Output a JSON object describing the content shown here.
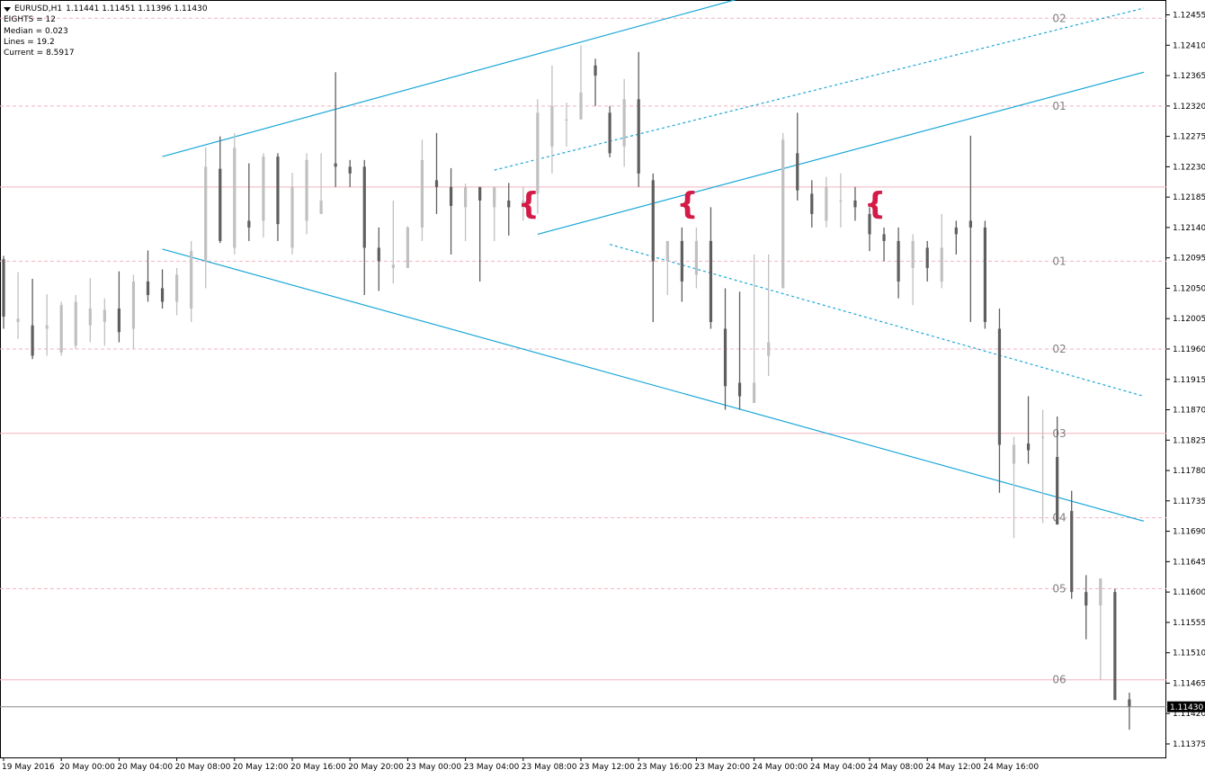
{
  "header": {
    "symbol": "EURUSD,H1",
    "ohlc": "1.11441 1.11451 1.11396 1.11430",
    "lines": [
      "EIGHTS = 12",
      "Median = 0.023",
      "Lines = 19.2",
      "Current = 8.5917"
    ]
  },
  "colors": {
    "background": "#ffffff",
    "bull_bar": "#c0c0c0",
    "bear_bar": "#5f5f5f",
    "channel": "#1aa7d8",
    "eighths_line": "#f2b3bf",
    "brace": "#d41a46",
    "price_line": "#8c8c8c",
    "axis_text": "#000000",
    "level_label": "#808080"
  },
  "chart_data": {
    "type": "bar",
    "symbol": "EURUSD",
    "timeframe": "H1",
    "ylim": [
      1.11355,
      1.12477
    ],
    "y_ticks": [
      "1.12455",
      "1.12410",
      "1.12365",
      "1.12320",
      "1.12275",
      "1.12230",
      "1.12185",
      "1.12140",
      "1.12095",
      "1.12050",
      "1.12005",
      "1.11960",
      "1.11915",
      "1.11870",
      "1.11825",
      "1.11780",
      "1.11735",
      "1.11690",
      "1.11645",
      "1.11600",
      "1.11555",
      "1.11510",
      "1.11465",
      "1.11420",
      "1.11375"
    ],
    "x_labels": [
      "19 May 2016",
      "20 May 00:00",
      "20 May 04:00",
      "20 May 08:00",
      "20 May 12:00",
      "20 May 16:00",
      "20 May 20:00",
      "23 May 00:00",
      "23 May 04:00",
      "23 May 08:00",
      "23 May 12:00",
      "23 May 16:00",
      "23 May 20:00",
      "24 May 00:00",
      "24 May 04:00",
      "24 May 08:00",
      "24 May 12:00",
      "24 May 16:00"
    ],
    "current_price": "1.11430",
    "current_price_value": 1.1143,
    "bars": [
      [
        1.12093,
        1.12098,
        1.1199,
        1.12008
      ],
      [
        1.12,
        1.12074,
        1.11975,
        1.12005
      ],
      [
        1.11995,
        1.12064,
        1.11945,
        1.1195
      ],
      [
        1.1199,
        1.12041,
        1.1195,
        1.11995
      ],
      [
        1.11955,
        1.1203,
        1.1195,
        1.12025
      ],
      [
        1.11965,
        1.1204,
        1.1196,
        1.1203
      ],
      [
        1.11995,
        1.12065,
        1.1197,
        1.1202
      ],
      [
        1.12,
        1.12035,
        1.11965,
        1.12018
      ],
      [
        1.1202,
        1.12075,
        1.1197,
        1.11985
      ],
      [
        1.1199,
        1.1207,
        1.1196,
        1.1206
      ],
      [
        1.1206,
        1.12106,
        1.1203,
        1.1204
      ],
      [
        1.1205,
        1.12078,
        1.1202,
        1.1203
      ],
      [
        1.1203,
        1.1208,
        1.1201,
        1.1207
      ],
      [
        1.1202,
        1.1212,
        1.12,
        1.12105
      ],
      [
        1.1209,
        1.12259,
        1.1205,
        1.1223
      ],
      [
        1.12227,
        1.12275,
        1.12117,
        1.1212
      ],
      [
        1.1211,
        1.1228,
        1.121,
        1.12258
      ],
      [
        1.1215,
        1.12235,
        1.1212,
        1.1214
      ],
      [
        1.1215,
        1.1225,
        1.12125,
        1.12245
      ],
      [
        1.12245,
        1.1225,
        1.1212,
        1.12145
      ],
      [
        1.1211,
        1.12221,
        1.121,
        1.122
      ],
      [
        1.1215,
        1.1225,
        1.1213,
        1.1224
      ],
      [
        1.1216,
        1.1225,
        1.1218,
        1.1218
      ],
      [
        1.12235,
        1.1237,
        1.122,
        1.1223
      ],
      [
        1.1223,
        1.1224,
        1.122,
        1.1222
      ],
      [
        1.1223,
        1.1224,
        1.1204,
        1.1211
      ],
      [
        1.1211,
        1.1214,
        1.12046,
        1.1209
      ],
      [
        1.1208,
        1.1218,
        1.12057,
        1.12085
      ],
      [
        1.1208,
        1.12142,
        1.1209,
        1.1214
      ],
      [
        1.1214,
        1.1227,
        1.1212,
        1.1224
      ],
      [
        1.1221,
        1.1228,
        1.1216,
        1.122
      ],
      [
        1.122,
        1.12228,
        1.121,
        1.12172
      ],
      [
        1.1217,
        1.12205,
        1.1212,
        1.122
      ],
      [
        1.122,
        1.122,
        1.1206,
        1.1218
      ],
      [
        1.1217,
        1.122,
        1.1212,
        1.122
      ],
      [
        1.1218,
        1.12206,
        1.12128,
        1.1217
      ],
      [
        1.1217,
        1.122,
        1.1215,
        1.1218
      ],
      [
        1.1219,
        1.1233,
        1.1216,
        1.1231
      ],
      [
        1.1226,
        1.1238,
        1.1222,
        1.1232
      ],
      [
        1.123,
        1.12325,
        1.1226,
        1.123
      ],
      [
        1.123,
        1.1241,
        1.1234,
        1.1234
      ],
      [
        1.1238,
        1.1239,
        1.1232,
        1.12365
      ],
      [
        1.1231,
        1.1232,
        1.12244,
        1.1225
      ],
      [
        1.1226,
        1.1236,
        1.1223,
        1.1233
      ],
      [
        1.1233,
        1.124,
        1.122,
        1.1222
      ],
      [
        1.1221,
        1.1222,
        1.12,
        1.1209
      ],
      [
        1.1209,
        1.1212,
        1.1204,
        1.1212
      ],
      [
        1.1212,
        1.1214,
        1.1203,
        1.1206
      ],
      [
        1.1207,
        1.1214,
        1.1205,
        1.1212
      ],
      [
        1.1212,
        1.1217,
        1.1199,
        1.12
      ],
      [
        1.1199,
        1.1205,
        1.1187,
        1.11905
      ],
      [
        1.1191,
        1.12045,
        1.1187,
        1.1189
      ],
      [
        1.1188,
        1.121,
        1.1189,
        1.1191
      ],
      [
        1.1195,
        1.121,
        1.1192,
        1.1197
      ],
      [
        1.1205,
        1.1228,
        1.1207,
        1.1227
      ],
      [
        1.1225,
        1.1231,
        1.1218,
        1.12195
      ],
      [
        1.1219,
        1.1221,
        1.1214,
        1.1216
      ],
      [
        1.1215,
        1.12215,
        1.1214,
        1.122
      ],
      [
        1.1218,
        1.1222,
        1.1214,
        1.1218
      ],
      [
        1.1218,
        1.122,
        1.1215,
        1.1217
      ],
      [
        1.1216,
        1.1217,
        1.12105,
        1.1213
      ],
      [
        1.1213,
        1.1214,
        1.1209,
        1.1212
      ],
      [
        1.1212,
        1.1214,
        1.12035,
        1.1206
      ],
      [
        1.1208,
        1.1213,
        1.12025,
        1.1212
      ],
      [
        1.1211,
        1.1212,
        1.1206,
        1.1208
      ],
      [
        1.1206,
        1.1216,
        1.1205,
        1.1211
      ],
      [
        1.1214,
        1.1215,
        1.121,
        1.1213
      ],
      [
        1.1215,
        1.12276,
        1.12,
        1.1214
      ],
      [
        1.1214,
        1.1215,
        1.1199,
        1.12
      ],
      [
        1.1199,
        1.1202,
        1.11747,
        1.11818
      ],
      [
        1.1179,
        1.1183,
        1.1168,
        1.11818
      ],
      [
        1.1182,
        1.1189,
        1.1179,
        1.1181
      ],
      [
        1.1183,
        1.1187,
        1.11702,
        1.1183
      ],
      [
        1.118,
        1.1186,
        1.117,
        1.117
      ],
      [
        1.1172,
        1.1175,
        1.1159,
        1.116
      ],
      [
        1.116,
        1.11625,
        1.1153,
        1.1158
      ],
      [
        1.1158,
        1.1162,
        1.1147,
        1.1162
      ],
      [
        1.116,
        1.11605,
        1.1144,
        1.1144
      ],
      [
        1.11441,
        1.11451,
        1.11396,
        1.1143
      ]
    ],
    "eighths_levels": [
      {
        "price": 1.1245,
        "label": "02",
        "style": "dashed"
      },
      {
        "price": 1.1232,
        "label": "01",
        "style": "dashed"
      },
      {
        "price": 1.122,
        "label": "",
        "style": "solid"
      },
      {
        "price": 1.1209,
        "label": "01",
        "style": "dashed"
      },
      {
        "price": 1.1196,
        "label": "02",
        "style": "dashed"
      },
      {
        "price": 1.11835,
        "label": "03",
        "style": "solid"
      },
      {
        "price": 1.1171,
        "label": "04",
        "style": "dashed"
      },
      {
        "price": 1.11605,
        "label": "05",
        "style": "dashed"
      },
      {
        "price": 1.1147,
        "label": "06",
        "style": "solid"
      }
    ],
    "brace_positions": [
      36,
      47,
      60
    ],
    "brace_glyph": "{",
    "trend_lines": [
      {
        "style": "solid",
        "from": [
          11,
          1.12245
        ],
        "to": [
          52,
          1.12485
        ]
      },
      {
        "style": "solid",
        "from": [
          11,
          1.12108
        ],
        "to": [
          79,
          1.11705
        ]
      },
      {
        "style": "dashed",
        "from": [
          34,
          1.12225
        ],
        "to": [
          79,
          1.12465
        ]
      },
      {
        "style": "solid",
        "from": [
          37,
          1.1213
        ],
        "to": [
          79,
          1.1237
        ]
      },
      {
        "style": "dashed",
        "from": [
          42,
          1.12115
        ],
        "to": [
          79,
          1.1189
        ]
      }
    ]
  }
}
